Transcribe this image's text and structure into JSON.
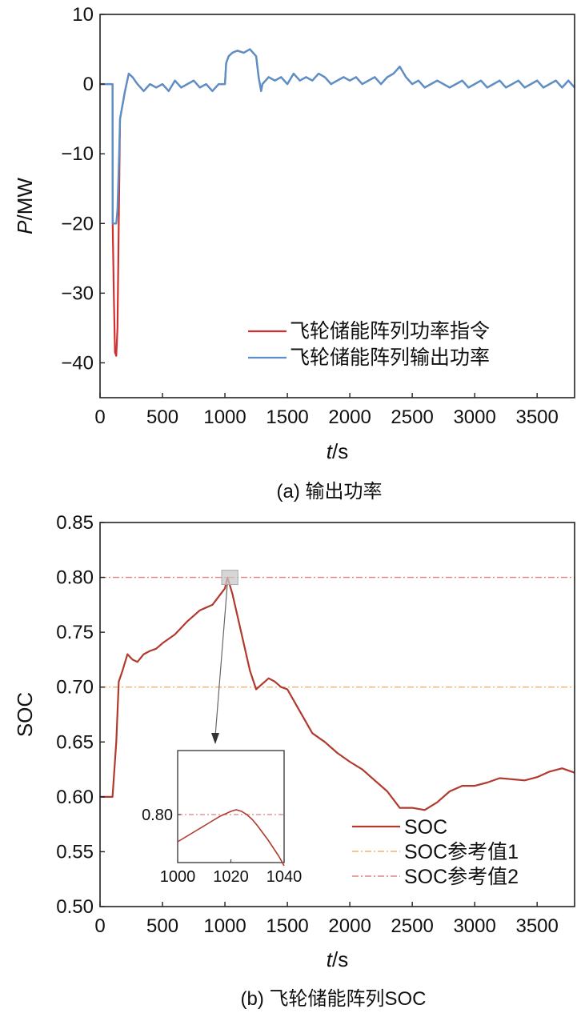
{
  "chart_data": [
    {
      "type": "line",
      "panel_label": "(a)",
      "caption": "输出功率",
      "ylabel_var": "P",
      "ylabel_unit": "/MW",
      "xlabel_var": "t",
      "xlabel_unit": "/s",
      "xlim": [
        0,
        3800
      ],
      "ylim": [
        -45,
        10
      ],
      "xticks": [
        0,
        500,
        1000,
        1500,
        2000,
        2500,
        3000,
        3500
      ],
      "yticks": [
        10,
        0,
        -10,
        -20,
        -30,
        -40
      ],
      "ytick_labels": [
        "10",
        "0",
        "−10",
        "−20",
        "−30",
        "−40"
      ],
      "legend_position": "bottom-right",
      "colors": {
        "command": "#d03030",
        "output": "#5b8fc7"
      },
      "series": [
        {
          "name": "飞轮储能阵列功率指令",
          "x": [
            0,
            100,
            101,
            110,
            120,
            130,
            140,
            150,
            160,
            180,
            200,
            230,
            260,
            300,
            350,
            400,
            450,
            500,
            550,
            600,
            650,
            700,
            750,
            800,
            850,
            900,
            950,
            1000,
            1010,
            1030,
            1060,
            1100,
            1150,
            1200,
            1250,
            1270,
            1290,
            1300,
            1350,
            1400,
            1450,
            1500,
            1550,
            1600,
            1650,
            1700,
            1750,
            1800,
            1850,
            1900,
            1950,
            2000,
            2050,
            2100,
            2150,
            2200,
            2250,
            2300,
            2350,
            2400,
            2450,
            2500,
            2550,
            2600,
            2650,
            2700,
            2750,
            2800,
            2850,
            2900,
            2950,
            3000,
            3050,
            3100,
            3150,
            3200,
            3250,
            3300,
            3350,
            3400,
            3450,
            3500,
            3550,
            3600,
            3650,
            3700,
            3750,
            3800
          ],
          "y": [
            0,
            0,
            -20,
            -30,
            -38.5,
            -39,
            -35,
            -20,
            -5,
            -3,
            -1,
            1.5,
            1,
            0,
            -1,
            0,
            -0.5,
            0,
            -1,
            0.5,
            -0.5,
            0,
            0.5,
            -0.5,
            0,
            -1,
            0,
            0,
            3,
            4,
            4.5,
            4.8,
            4.5,
            5,
            4,
            1,
            -1,
            0,
            1,
            0.5,
            1,
            0,
            1.5,
            0.5,
            1,
            0.5,
            1.5,
            1,
            0,
            0.5,
            1,
            0.5,
            1,
            0,
            0.5,
            1,
            0,
            1,
            1.5,
            2.5,
            1,
            0,
            0.5,
            -0.5,
            0,
            0.5,
            0,
            -0.5,
            0,
            0.5,
            -0.5,
            0,
            0.5,
            -0.5,
            0,
            0.5,
            -0.5,
            0,
            0.5,
            -0.5,
            0,
            0.5,
            -0.5,
            0,
            0.5,
            -0.5,
            0.5,
            -0.5
          ]
        },
        {
          "name": "飞轮储能阵列输出功率",
          "x": [
            0,
            100,
            101,
            120,
            130,
            140,
            150,
            160,
            180,
            200,
            230,
            260,
            300,
            350,
            400,
            450,
            500,
            550,
            600,
            650,
            700,
            750,
            800,
            850,
            900,
            950,
            1000,
            1010,
            1030,
            1060,
            1100,
            1150,
            1200,
            1250,
            1270,
            1290,
            1300,
            1350,
            1400,
            1450,
            1500,
            1550,
            1600,
            1650,
            1700,
            1750,
            1800,
            1850,
            1900,
            1950,
            2000,
            2050,
            2100,
            2150,
            2200,
            2250,
            2300,
            2350,
            2400,
            2450,
            2500,
            2550,
            2600,
            2650,
            2700,
            2750,
            2800,
            2850,
            2900,
            2950,
            3000,
            3050,
            3100,
            3150,
            3200,
            3250,
            3300,
            3350,
            3400,
            3450,
            3500,
            3550,
            3600,
            3650,
            3700,
            3750,
            3800
          ],
          "y": [
            0,
            0,
            -20,
            -20,
            -20,
            -18,
            -12,
            -5,
            -3,
            -1,
            1.5,
            1,
            0,
            -1,
            0,
            -0.5,
            0,
            -1,
            0.5,
            -0.5,
            0,
            0.5,
            -0.5,
            0,
            -1,
            0,
            0,
            3,
            4,
            4.5,
            4.8,
            4.5,
            5,
            4,
            1,
            -1,
            0,
            1,
            0.5,
            1,
            0,
            1.5,
            0.5,
            1,
            0.5,
            1.5,
            1,
            0,
            0.5,
            1,
            0.5,
            1,
            0,
            0.5,
            1,
            0,
            1,
            1.5,
            2.5,
            1,
            0,
            0.5,
            -0.5,
            0,
            0.5,
            0,
            -0.5,
            0,
            0.5,
            -0.5,
            0,
            0.5,
            -0.5,
            0,
            0.5,
            -0.5,
            0,
            0.5,
            -0.5,
            0,
            0.5,
            -0.5,
            0,
            0.5,
            -0.5,
            0.5,
            -0.5
          ]
        }
      ]
    },
    {
      "type": "line",
      "panel_label": "(b)",
      "caption": "飞轮储能阵列SOC",
      "ylabel": "SOC",
      "xlabel_var": "t",
      "xlabel_unit": "/s",
      "xlim": [
        0,
        3800
      ],
      "ylim": [
        0.5,
        0.85
      ],
      "xticks": [
        0,
        500,
        1000,
        1500,
        2000,
        2500,
        3000,
        3500
      ],
      "yticks": [
        0.85,
        0.8,
        0.75,
        0.7,
        0.65,
        0.6,
        0.55,
        0.5
      ],
      "ytick_labels": [
        "0.85",
        "0.80",
        "0.75",
        "0.70",
        "0.65",
        "0.60",
        "0.55",
        "0.50"
      ],
      "legend_position": "bottom-right",
      "colors": {
        "soc": "#b03a2e",
        "ref1": "#f0b070",
        "ref2": "#e08080"
      },
      "series": [
        {
          "name": "SOC",
          "x": [
            0,
            100,
            130,
            150,
            180,
            220,
            260,
            300,
            350,
            400,
            450,
            500,
            600,
            700,
            800,
            900,
            1000,
            1020,
            1060,
            1100,
            1150,
            1200,
            1250,
            1300,
            1350,
            1400,
            1450,
            1500,
            1600,
            1700,
            1800,
            1900,
            2000,
            2100,
            2200,
            2300,
            2400,
            2500,
            2600,
            2700,
            2800,
            2900,
            3000,
            3100,
            3200,
            3300,
            3400,
            3500,
            3600,
            3700,
            3800
          ],
          "y": [
            0.6,
            0.6,
            0.65,
            0.705,
            0.715,
            0.73,
            0.725,
            0.723,
            0.73,
            0.733,
            0.735,
            0.74,
            0.748,
            0.76,
            0.77,
            0.775,
            0.79,
            0.8,
            0.785,
            0.765,
            0.74,
            0.715,
            0.698,
            0.703,
            0.708,
            0.705,
            0.7,
            0.698,
            0.678,
            0.658,
            0.65,
            0.64,
            0.632,
            0.625,
            0.615,
            0.605,
            0.59,
            0.59,
            0.588,
            0.595,
            0.605,
            0.61,
            0.61,
            0.613,
            0.617,
            0.616,
            0.615,
            0.618,
            0.623,
            0.626,
            0.622
          ]
        },
        {
          "name": "SOC参考值1",
          "x": [
            0,
            3800
          ],
          "y": [
            0.7,
            0.7
          ]
        },
        {
          "name": "SOC参考值2",
          "x": [
            0,
            3800
          ],
          "y": [
            0.8,
            0.8
          ]
        }
      ],
      "inset": {
        "xlim": [
          1000,
          1040
        ],
        "ylim": [
          0.77,
          0.84
        ],
        "xticks": [
          1000,
          1020,
          1040
        ],
        "yticks": [
          0.8
        ],
        "ytick_labels": [
          "0.80"
        ],
        "series_x": [
          1000,
          1004,
          1008,
          1012,
          1016,
          1020,
          1022,
          1024,
          1026,
          1028,
          1030,
          1034,
          1038,
          1040
        ],
        "series_y": [
          0.783,
          0.787,
          0.791,
          0.795,
          0.799,
          0.802,
          0.803,
          0.802,
          0.8,
          0.797,
          0.793,
          0.784,
          0.774,
          0.768
        ],
        "ref_y": 0.8,
        "zoom_x": [
          1000,
          1040
        ]
      }
    }
  ]
}
